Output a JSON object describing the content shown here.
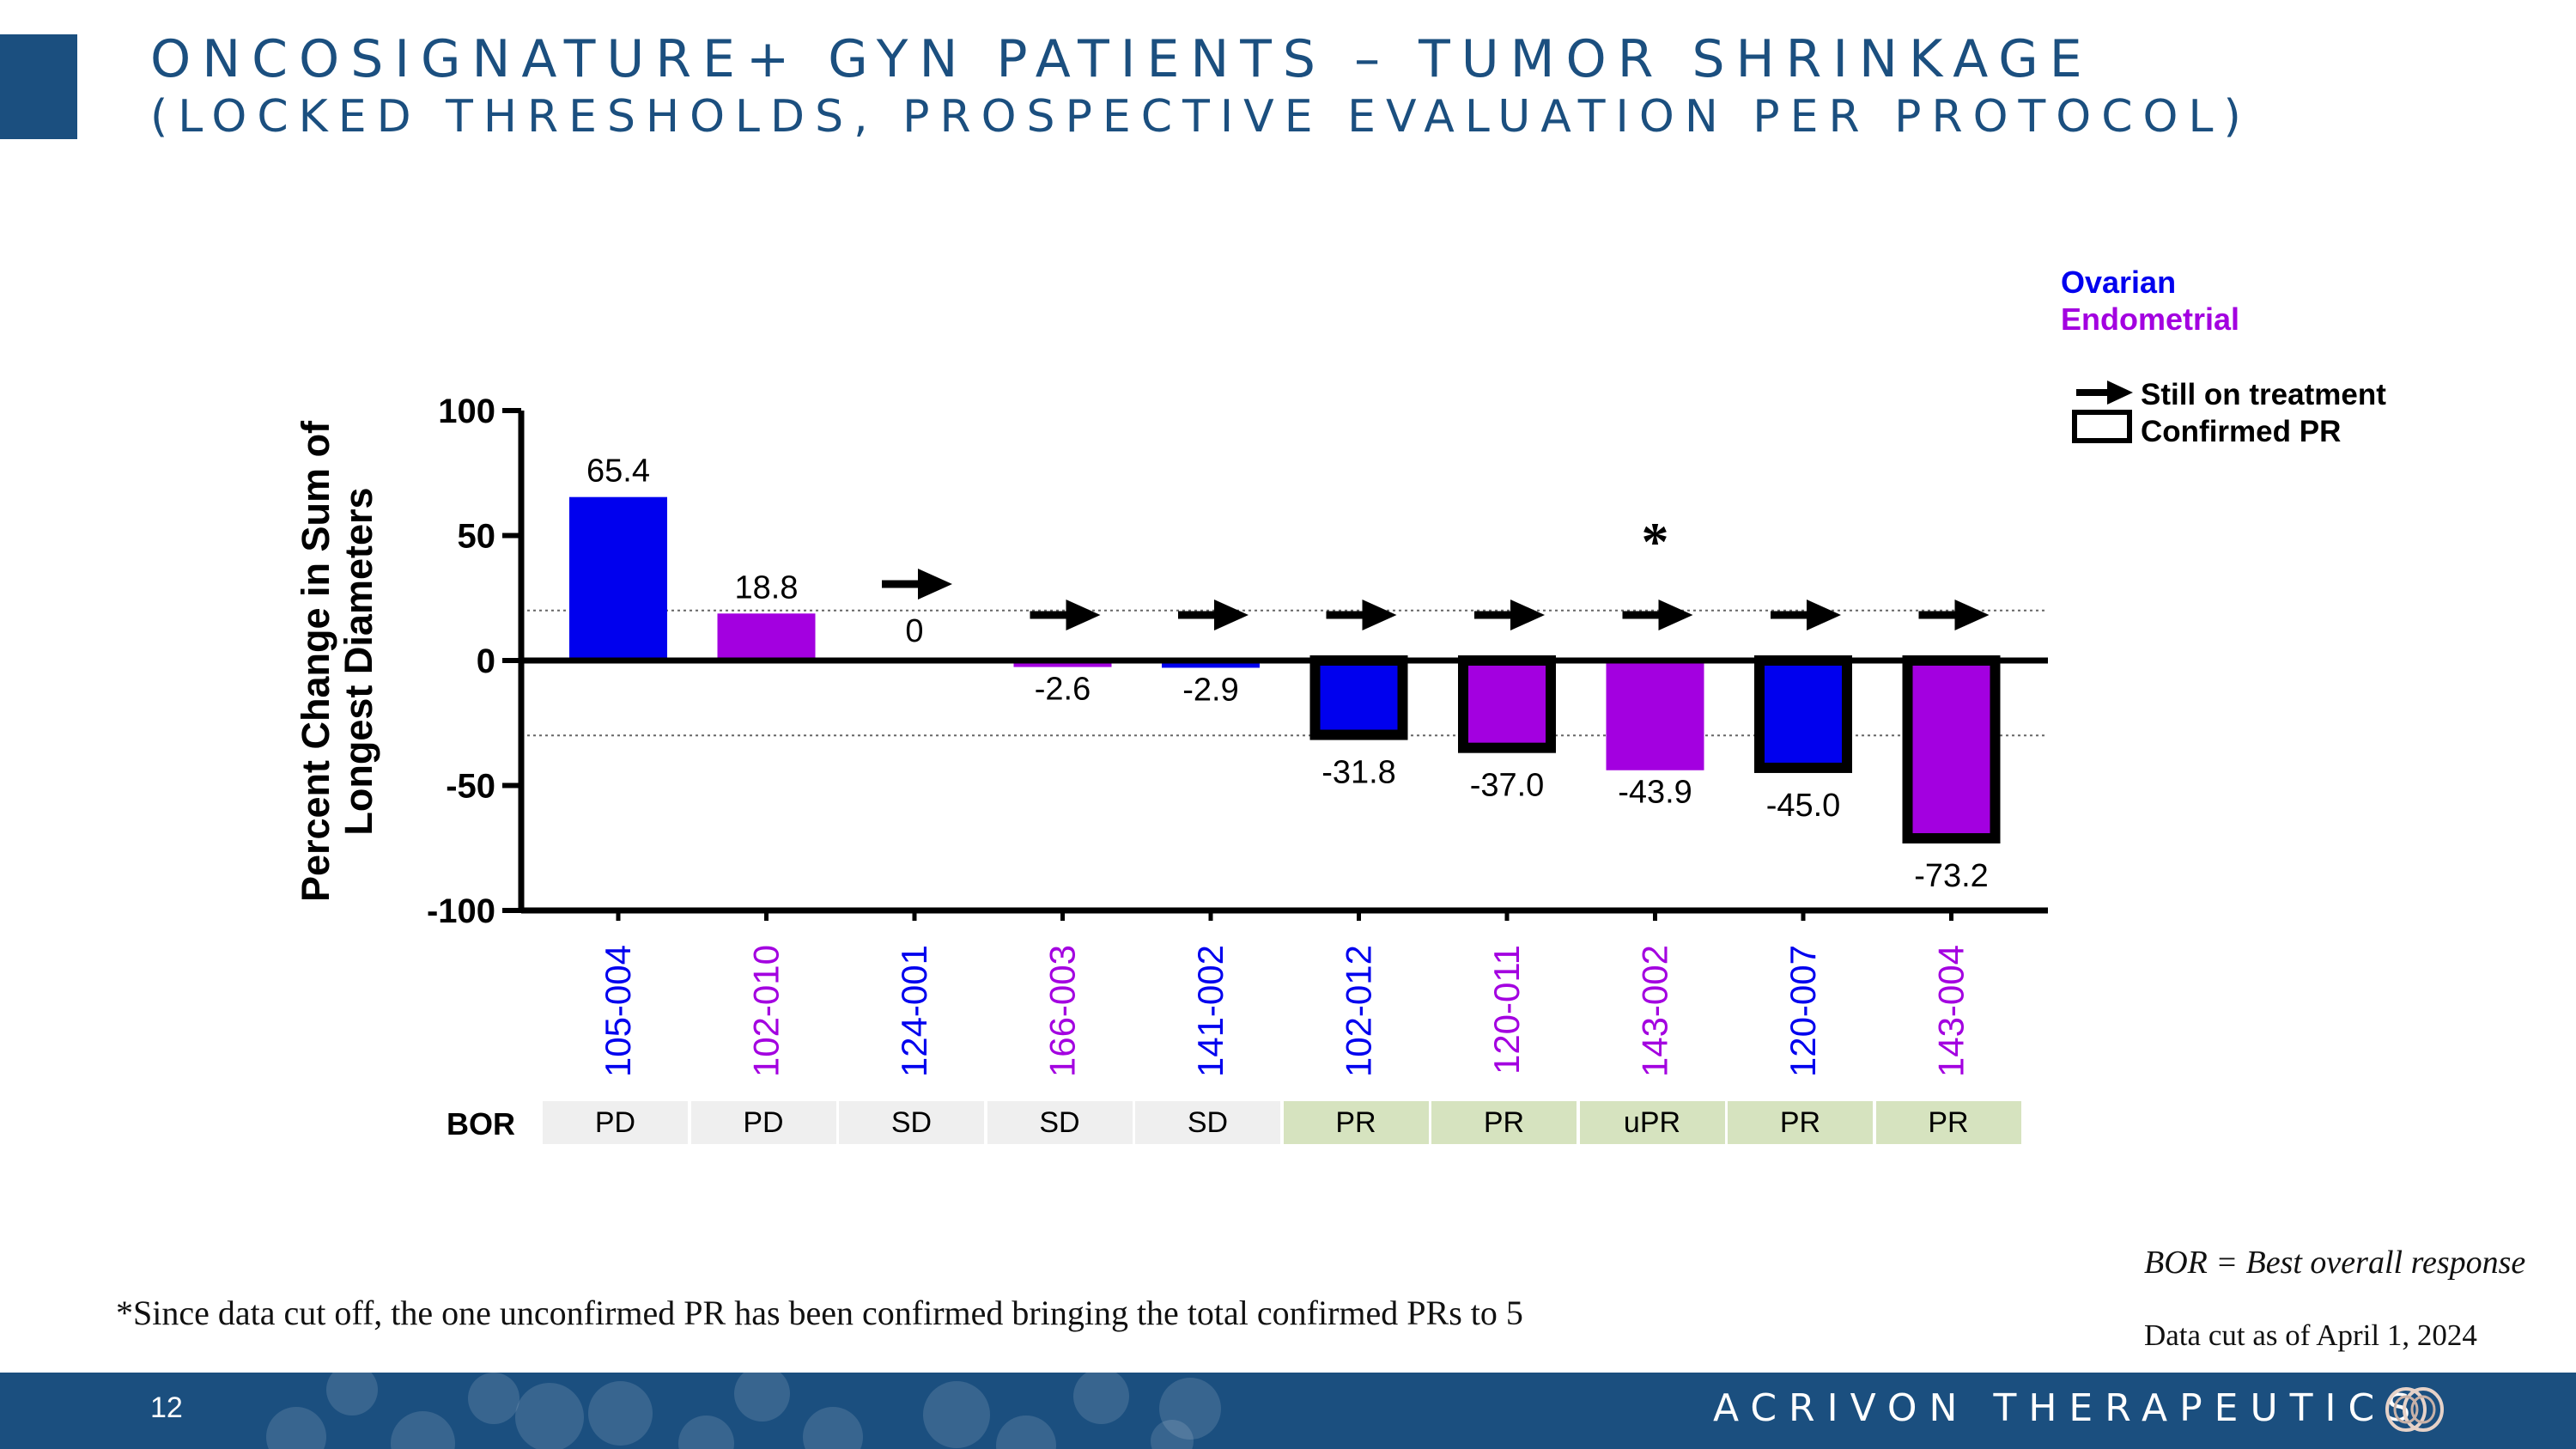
{
  "title": {
    "line1": "ONCOSIGNATURE+ GYN PATIENTS – TUMOR SHRINKAGE",
    "line2": "(LOCKED THRESHOLDS, PROSPECTIVE EVALUATION PER PROTOCOL)"
  },
  "colors": {
    "ovarian": "#0000ee",
    "endometrial": "#a300e0",
    "brand": "#1b4f7f",
    "bor_pr": "#d6e3bf",
    "bor_other": "#efefef"
  },
  "chart_data": {
    "type": "bar",
    "ylabel": "Percent Change in Sum of Longest Diameters",
    "ylim": [
      -100,
      100
    ],
    "yticks": [
      100,
      50,
      0,
      -50,
      -100
    ],
    "reference_lines": [
      20,
      -30
    ],
    "categories": [
      "105-004",
      "102-010",
      "124-001",
      "166-003",
      "141-002",
      "102-012",
      "120-011",
      "143-002",
      "120-007",
      "143-004"
    ],
    "values": [
      65.4,
      18.8,
      0,
      -2.6,
      -2.9,
      -31.8,
      -37.0,
      -43.9,
      -45.0,
      -73.2
    ],
    "value_labels": [
      "65.4",
      "18.8",
      "0",
      "-2.6",
      "-2.9",
      "-31.8",
      "-37.0",
      "-43.9",
      "-45.0",
      "-73.2"
    ],
    "tumor_type": [
      "ovarian",
      "endometrial",
      "ovarian",
      "endometrial",
      "ovarian",
      "ovarian",
      "endometrial",
      "endometrial",
      "ovarian",
      "endometrial"
    ],
    "still_on_treatment": [
      false,
      false,
      true,
      true,
      true,
      true,
      true,
      true,
      true,
      true
    ],
    "confirmed_pr": [
      false,
      false,
      false,
      false,
      false,
      true,
      true,
      false,
      true,
      true
    ],
    "asterisk": [
      false,
      false,
      false,
      false,
      false,
      false,
      false,
      true,
      false,
      false
    ],
    "asterisk_symbol": "*"
  },
  "bor": {
    "label": "BOR",
    "values": [
      "PD",
      "PD",
      "SD",
      "SD",
      "SD",
      "PR",
      "PR",
      "uPR",
      "PR",
      "PR"
    ]
  },
  "legend": {
    "ovarian": "Ovarian",
    "endometrial": "Endometrial",
    "still_on_treatment": "Still on treatment",
    "confirmed_pr": "Confirmed PR"
  },
  "footnote": "*Since data cut off, the one unconfirmed PR has been confirmed bringing the total confirmed PRs to 5",
  "bor_definition": "BOR = Best overall response",
  "data_cut": "Data cut as of April 1, 2024",
  "footer": {
    "page_number": "12",
    "brand": "ACRIVON THERAPEUTICS"
  }
}
